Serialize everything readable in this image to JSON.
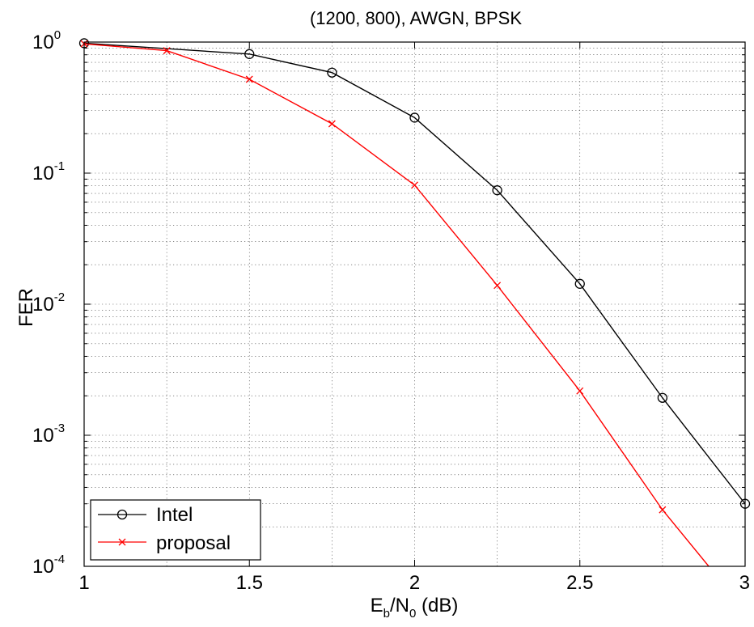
{
  "chart_data": {
    "type": "line",
    "title": "(1200, 800), AWGN, BPSK",
    "xlabel": {
      "main": "E",
      "sub1": "b",
      "mid": "/N",
      "sub2": "0",
      "unit": " (dB)"
    },
    "ylabel": "FER",
    "xlim": [
      1,
      3
    ],
    "ylim": [
      0.0001,
      1
    ],
    "yscale": "log",
    "grid": true,
    "legend_position": "bottom-left",
    "xticks": [
      {
        "value": 1,
        "label": "1"
      },
      {
        "value": 1.5,
        "label": "1.5"
      },
      {
        "value": 2,
        "label": "2"
      },
      {
        "value": 2.5,
        "label": "2.5"
      },
      {
        "value": 3,
        "label": "3"
      }
    ],
    "yticks": [
      {
        "value": 1,
        "base": "10",
        "exp": "0"
      },
      {
        "value": 0.1,
        "base": "10",
        "exp": "-1"
      },
      {
        "value": 0.01,
        "base": "10",
        "exp": "-2"
      },
      {
        "value": 0.001,
        "base": "10",
        "exp": "-3"
      },
      {
        "value": 0.0001,
        "base": "10",
        "exp": "-4"
      }
    ],
    "series": [
      {
        "name": "Intel",
        "color": "#000000",
        "marker": "circle",
        "x": [
          1,
          1.5,
          1.75,
          2,
          2.25,
          2.5,
          2.75,
          3
        ],
        "y": [
          0.98,
          0.81,
          0.585,
          0.265,
          0.074,
          0.0143,
          0.00193,
          0.0003
        ]
      },
      {
        "name": "proposal",
        "color": "#ff0000",
        "marker": "x",
        "x": [
          1,
          1.25,
          1.5,
          1.75,
          2,
          2.25,
          2.5,
          2.75,
          2.89
        ],
        "y": [
          0.97,
          0.86,
          0.52,
          0.238,
          0.081,
          0.0139,
          0.00218,
          0.00027,
          0.0001
        ],
        "marker_points": 8
      }
    ]
  }
}
